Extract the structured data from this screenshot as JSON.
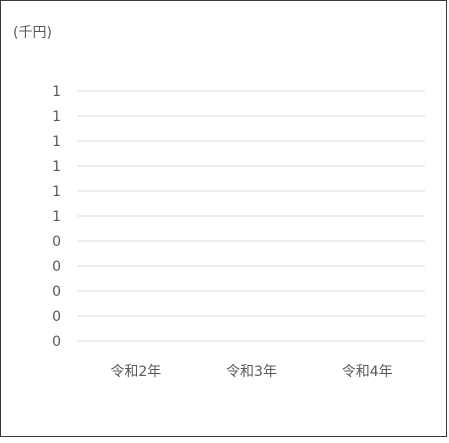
{
  "chart_data": {
    "type": "bar",
    "unit_label": "(千円)",
    "categories": [
      "令和2年",
      "令和3年",
      "令和4年"
    ],
    "series": [],
    "y_tick_labels": [
      "1",
      "1",
      "1",
      "1",
      "1",
      "1",
      "0",
      "0",
      "0",
      "0",
      "0"
    ],
    "ylim": [
      0,
      1
    ],
    "grid": true,
    "gridline_color": "#d9d9d9",
    "text_color": "#595959",
    "border_color": "#3a3a3a"
  }
}
